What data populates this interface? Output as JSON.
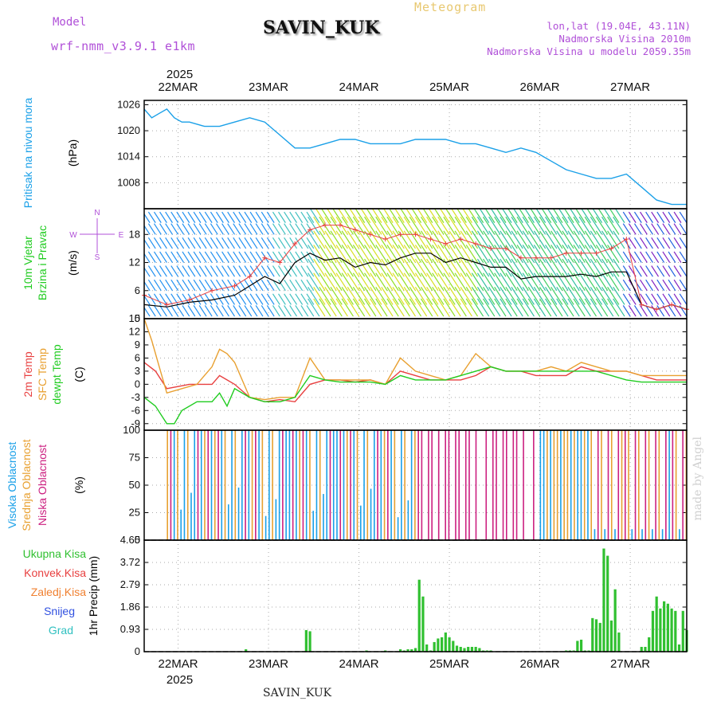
{
  "header": {
    "model_label": "Model",
    "model_name": "wrf-nmm_v3.9.1 e1km",
    "station": "SAVIN_KUK",
    "meteogram": "Meteogram",
    "lonlat": "lon,lat (19.04E, 43.11N)",
    "elevation": "Nadmorska Visina 2010m",
    "model_elevation": "Nadmorska Visina u modelu 2059.35m"
  },
  "footer": {
    "station": "SAVIN_KUK",
    "made_by": "made by Angel"
  },
  "colors": {
    "pressure": "#1aa0e8",
    "wind_speed": "#000000",
    "gust": "#e84040",
    "temp2m": "#e84040",
    "sfc_temp": "#e8a030",
    "dewpt": "#20cc20",
    "cloud_high": "#1aa0e8",
    "cloud_mid": "#e8a030",
    "cloud_low": "#cc2080",
    "precip_total": "#30c030",
    "precip_conv": "#e84040",
    "precip_frozen": "#f08030",
    "precip_snow": "#3050e0",
    "precip_hail": "#30c0c0"
  },
  "time_axis": {
    "year": "2025",
    "days": [
      "22MAR",
      "23MAR",
      "24MAR",
      "25MAR",
      "26MAR",
      "27MAR"
    ]
  },
  "chart_data": [
    {
      "id": "pressure",
      "type": "line",
      "ylabel_lines": [
        "Pritisak na nivou mora",
        "(hPa)"
      ],
      "yticks": [
        "1026",
        "1020",
        "1014",
        "1008"
      ],
      "ylim": [
        1002,
        1027
      ],
      "xlim": [
        0,
        144
      ],
      "series": [
        {
          "x": [
            0,
            2,
            4,
            6,
            8,
            10,
            12,
            16,
            20,
            24,
            28,
            32,
            36,
            40,
            44,
            48,
            52,
            56,
            60,
            64,
            68,
            72,
            76,
            80,
            84,
            88,
            92,
            96,
            100,
            104,
            108,
            112,
            116,
            120,
            124,
            128,
            132,
            136,
            140,
            144
          ],
          "y": [
            1025,
            1023,
            1024,
            1025,
            1023,
            1022,
            1022,
            1021,
            1021,
            1022,
            1023,
            1022,
            1019,
            1016,
            1016,
            1017,
            1018,
            1018,
            1017,
            1017,
            1017,
            1018,
            1018,
            1018,
            1017,
            1017,
            1016,
            1015,
            1016,
            1015,
            1013,
            1011,
            1010,
            1009,
            1009,
            1010,
            1007,
            1004,
            1003,
            1003
          ]
        }
      ]
    },
    {
      "id": "wind",
      "type": "line",
      "ylabel_lines": [
        "10m Vjetar",
        "Brzina i Pravac",
        "(m/s)"
      ],
      "compass": [
        "N",
        "W",
        "E",
        "S"
      ],
      "yticks": [
        "18",
        "12",
        "6",
        "0"
      ],
      "ylim": [
        0,
        23.5
      ],
      "xlim": [
        0,
        144
      ],
      "series": [
        {
          "x": [
            0,
            6,
            12,
            18,
            24,
            28,
            32,
            36,
            40,
            44,
            48,
            52,
            56,
            60,
            64,
            68,
            72,
            76,
            80,
            84,
            88,
            92,
            96,
            100,
            104,
            108,
            112,
            116,
            120,
            124,
            128,
            132,
            136,
            140,
            144
          ],
          "y": [
            3,
            2.5,
            3.5,
            4,
            5,
            7,
            9,
            7.5,
            12,
            14,
            12.5,
            13,
            11,
            12,
            11.5,
            13,
            14,
            14,
            12,
            13,
            12,
            11,
            11,
            8.5,
            9,
            9,
            9,
            9.5,
            9,
            10,
            10,
            3,
            2,
            3,
            2
          ]
        },
        {
          "x": [
            0,
            6,
            12,
            18,
            24,
            28,
            32,
            36,
            40,
            44,
            48,
            52,
            56,
            60,
            64,
            68,
            72,
            76,
            80,
            84,
            88,
            92,
            96,
            100,
            104,
            108,
            112,
            116,
            120,
            124,
            128,
            132,
            136,
            140,
            144
          ],
          "y": [
            5,
            3,
            4,
            6,
            7,
            9,
            13,
            12,
            16,
            19,
            20,
            20,
            19,
            18,
            17,
            18,
            18,
            17,
            16,
            17,
            16,
            15,
            15,
            13,
            13,
            13,
            14,
            14,
            14,
            15,
            17,
            3,
            2,
            3,
            2
          ]
        }
      ]
    },
    {
      "id": "temperature",
      "type": "line",
      "ylabel_lines": [
        "2m Temp",
        "SFC Temp",
        "dewpt Temp",
        "(C)"
      ],
      "yticks": [
        "15",
        "12",
        "9",
        "6",
        "3",
        "0",
        "-3",
        "-6",
        "-9"
      ],
      "ylim": [
        -10.5,
        15
      ],
      "xlim": [
        0,
        144
      ],
      "series": [
        {
          "name": "2m Temp",
          "x": [
            0,
            3,
            6,
            12,
            18,
            20,
            22,
            24,
            28,
            32,
            36,
            40,
            44,
            48,
            52,
            56,
            60,
            64,
            68,
            72,
            76,
            80,
            84,
            88,
            92,
            96,
            100,
            104,
            108,
            112,
            116,
            120,
            124,
            128,
            132,
            136,
            140,
            144
          ],
          "y": [
            5,
            3,
            -1,
            0,
            0,
            2,
            1,
            0,
            -3,
            -4,
            -3.5,
            -4,
            0,
            1,
            1,
            0.5,
            1,
            0,
            3,
            2,
            1,
            1,
            1,
            2,
            4,
            3,
            3,
            2,
            2,
            2,
            4,
            3,
            3,
            3,
            2,
            1,
            1,
            1
          ]
        },
        {
          "name": "SFC Temp",
          "x": [
            0,
            2,
            4,
            6,
            10,
            14,
            18,
            20,
            22,
            24,
            28,
            32,
            36,
            40,
            44,
            48,
            52,
            56,
            60,
            64,
            68,
            72,
            76,
            80,
            84,
            88,
            92,
            96,
            100,
            104,
            108,
            112,
            116,
            120,
            124,
            128,
            132,
            136,
            140,
            144
          ],
          "y": [
            15,
            10,
            4,
            -2,
            -1,
            0,
            4,
            8,
            7,
            5,
            -3,
            -3.5,
            -3,
            -3,
            6,
            1,
            1,
            1,
            1,
            0,
            6,
            3,
            2,
            1,
            2,
            7,
            4,
            3,
            3,
            3,
            4,
            3,
            5,
            4,
            3,
            3,
            2,
            2,
            2,
            2
          ]
        },
        {
          "name": "dewpt Temp",
          "x": [
            0,
            3,
            6,
            8,
            10,
            14,
            18,
            20,
            22,
            24,
            28,
            32,
            36,
            40,
            44,
            48,
            52,
            56,
            60,
            64,
            68,
            72,
            76,
            80,
            84,
            88,
            92,
            96,
            100,
            104,
            108,
            112,
            116,
            120,
            124,
            128,
            132,
            136,
            140,
            144
          ],
          "y": [
            -3,
            -5,
            -9,
            -9,
            -6,
            -4,
            -4,
            -2,
            -5,
            -1,
            -3,
            -4,
            -4,
            -3,
            2,
            1,
            0.5,
            0.5,
            0.5,
            0,
            2,
            1,
            1,
            1,
            2,
            3,
            4,
            3,
            3,
            3,
            3,
            3,
            3,
            3,
            2,
            1,
            0.5,
            0.5,
            0.5,
            0.5
          ]
        }
      ]
    },
    {
      "id": "clouds",
      "type": "bar",
      "ylabel_lines": [
        "Visoka Oblacnost",
        "Srednja Oblacnost",
        "Niska Oblacnost",
        "(%)"
      ],
      "yticks": [
        "100",
        "75",
        "50",
        "25",
        "0"
      ],
      "ylim": [
        0,
        100
      ],
      "xlim": [
        0,
        144
      ]
    },
    {
      "id": "precip",
      "type": "bar",
      "ylabel_lines": [
        "1hr Precip (mm)"
      ],
      "legend": [
        "Ukupna Kisa",
        "Konvek.Kisa",
        "Zaledj.Kisa",
        "Snijeg",
        "Grad"
      ],
      "yticks": [
        "4.65",
        "3.72",
        "2.79",
        "1.86",
        "0.93",
        "0"
      ],
      "ylim": [
        0,
        4.65
      ],
      "xlim": [
        0,
        144
      ],
      "x": [
        27,
        43,
        44,
        59,
        64,
        68,
        69,
        70,
        71,
        72,
        73,
        74,
        75,
        76,
        77,
        78,
        79,
        80,
        81,
        82,
        83,
        84,
        85,
        86,
        87,
        88,
        89,
        90,
        91,
        92,
        112,
        113,
        114,
        115,
        116,
        117,
        118,
        119,
        120,
        121,
        122,
        123,
        124,
        125,
        126,
        132,
        133,
        134,
        135,
        136,
        137,
        138,
        139,
        140,
        141,
        142,
        143,
        144
      ],
      "values": [
        0.1,
        0.9,
        0.85,
        0.05,
        0.05,
        0.1,
        0.05,
        0.1,
        0.1,
        0.15,
        3.0,
        2.3,
        0.3,
        0.05,
        0.4,
        0.55,
        0.6,
        0.8,
        0.6,
        0.45,
        0.25,
        0.2,
        0.15,
        0.2,
        0.2,
        0.2,
        0.15,
        0.05,
        0.05,
        0.05,
        0.05,
        0.05,
        0.05,
        0.45,
        0.5,
        0.05,
        0.05,
        1.4,
        1.35,
        1.2,
        4.3,
        4.0,
        1.3,
        2.6,
        0.8,
        0.2,
        0.2,
        0.6,
        1.7,
        2.3,
        1.8,
        2.1,
        2.0,
        1.8,
        1.7,
        0.3,
        1.7,
        0.9
      ]
    }
  ]
}
